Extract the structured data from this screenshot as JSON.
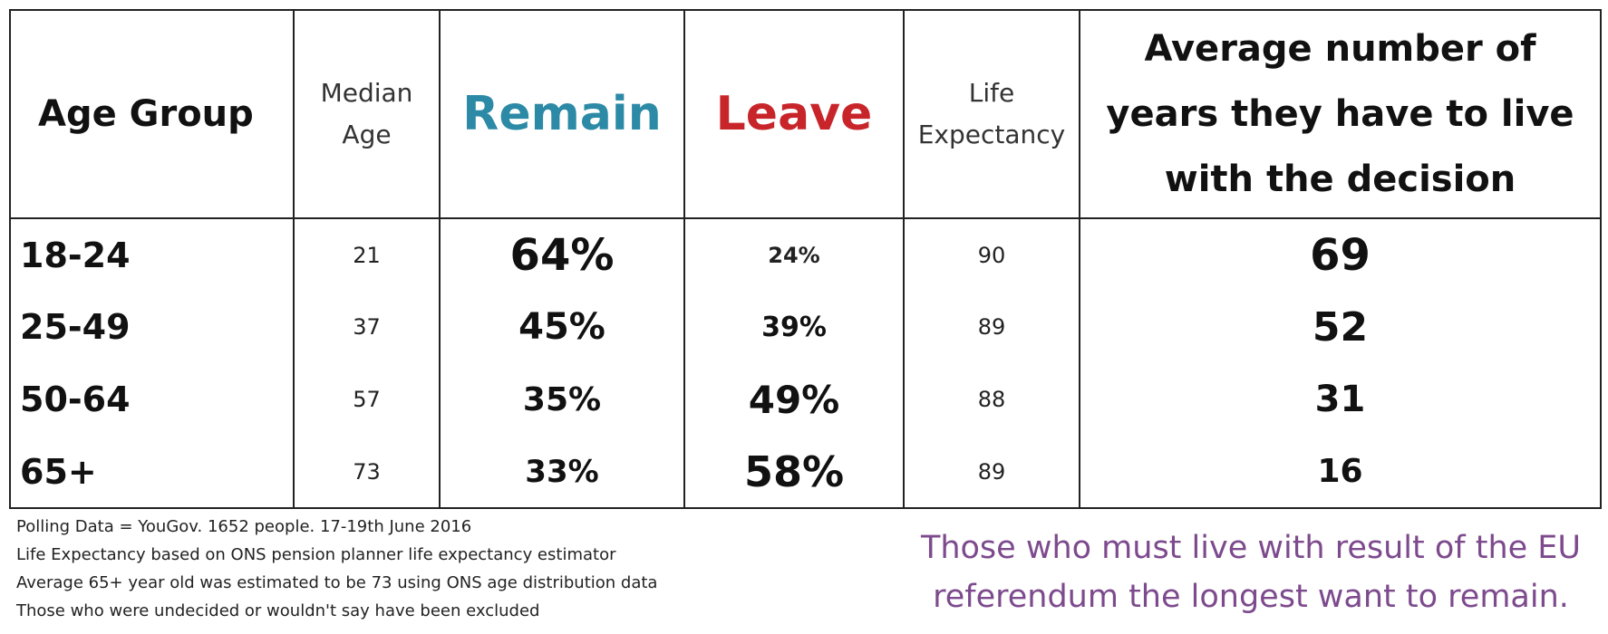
{
  "chart_data": {
    "type": "table",
    "columns": [
      {
        "label": "Age Group",
        "color": "#111111"
      },
      {
        "label_lines": [
          "Median",
          "Age"
        ],
        "color": "#333333"
      },
      {
        "label": "Remain",
        "color": "#2c8aa6"
      },
      {
        "label": "Leave",
        "color": "#c8252b"
      },
      {
        "label_lines": [
          "Life",
          "Expectancy"
        ],
        "color": "#333333"
      },
      {
        "label_lines": [
          "Average number of",
          "years they have to live",
          "with the decision"
        ],
        "color": "#111111"
      }
    ],
    "rows": [
      {
        "age_group": "18-24",
        "median_age": "21",
        "remain": "64%",
        "leave": "24%",
        "life_expectancy": "90",
        "years": "69"
      },
      {
        "age_group": "25-49",
        "median_age": "37",
        "remain": "45%",
        "leave": "39%",
        "life_expectancy": "89",
        "years": "52"
      },
      {
        "age_group": "50-64",
        "median_age": "57",
        "remain": "35%",
        "leave": "49%",
        "life_expectancy": "88",
        "years": "31"
      },
      {
        "age_group": "65+",
        "median_age": "73",
        "remain": "33%",
        "leave": "58%",
        "life_expectancy": "89",
        "years": "16"
      }
    ]
  },
  "notes": [
    "Polling Data = YouGov. 1652 people. 17-19th June 2016",
    "Life Expectancy based on ONS pension planner life expectancy estimator",
    "Average 65+ year old was estimated to be 73 using ONS age distribution data",
    "Those who were undecided or wouldn't say have been excluded"
  ],
  "caption_lines": [
    "Those who must live with result of the EU",
    "referendum the longest want to remain."
  ],
  "colors": {
    "remain": "#2c8aa6",
    "leave": "#c8252b",
    "caption": "#7d4a8d",
    "border": "#222222"
  }
}
